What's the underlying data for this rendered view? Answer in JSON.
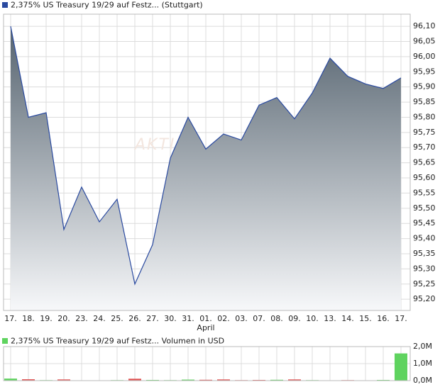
{
  "chart_data": [
    {
      "type": "area",
      "legend": "2,375% US Treasury 19/29 auf Festz... (Stuttgart)",
      "legend_color": "#2a4aa0",
      "watermark": "AKTIE",
      "categories": [
        "17.",
        "18.",
        "19.",
        "20.",
        "23.",
        "24.",
        "25.",
        "26.",
        "27.",
        "30.",
        "31.",
        "01.",
        "02.",
        "03.",
        "07.",
        "08.",
        "09.",
        "10.",
        "13.",
        "14.",
        "15.",
        "16.",
        "17."
      ],
      "category_sublabels": [
        null,
        null,
        null,
        null,
        null,
        null,
        null,
        null,
        null,
        null,
        null,
        "April",
        null,
        null,
        null,
        null,
        null,
        null,
        null,
        null,
        null,
        null,
        null
      ],
      "series": [
        {
          "name": "2,375% US Treasury 19/29 auf Festz... (Stuttgart)",
          "color": "#2a4aa0",
          "values": [
            96.1,
            95.8,
            95.815,
            95.43,
            95.57,
            95.455,
            95.53,
            95.25,
            95.38,
            95.665,
            95.8,
            95.695,
            95.745,
            95.725,
            95.84,
            95.865,
            95.795,
            95.88,
            95.995,
            95.935,
            95.91,
            95.895,
            95.93
          ]
        }
      ],
      "ylim": [
        95.163,
        96.14
      ],
      "yticks": [
        {
          "value": 95.2,
          "label": "95,20"
        },
        {
          "value": 95.25,
          "label": "95,25"
        },
        {
          "value": 95.3,
          "label": "95,30"
        },
        {
          "value": 95.35,
          "label": "95,35"
        },
        {
          "value": 95.4,
          "label": "95,40"
        },
        {
          "value": 95.45,
          "label": "95,45"
        },
        {
          "value": 95.5,
          "label": "95,50"
        },
        {
          "value": 95.55,
          "label": "95,55"
        },
        {
          "value": 95.6,
          "label": "95,60"
        },
        {
          "value": 95.65,
          "label": "95,65"
        },
        {
          "value": 95.7,
          "label": "95,70"
        },
        {
          "value": 95.75,
          "label": "95,75"
        },
        {
          "value": 95.8,
          "label": "95,80"
        },
        {
          "value": 95.85,
          "label": "95,85"
        },
        {
          "value": 95.9,
          "label": "95,90"
        },
        {
          "value": 95.95,
          "label": "95,95"
        },
        {
          "value": 96.0,
          "label": "96,00"
        },
        {
          "value": 96.05,
          "label": "96,05"
        },
        {
          "value": 96.1,
          "label": "96,10"
        }
      ],
      "grid": true
    },
    {
      "type": "bar",
      "legend": "2,375% US Treasury 19/29 auf Festz... Volumen in USD",
      "legend_color": "#5fd35f",
      "values": [
        120000,
        80000,
        30000,
        70000,
        20000,
        20000,
        30000,
        110000,
        40000,
        30000,
        60000,
        50000,
        70000,
        30000,
        40000,
        50000,
        70000,
        30000,
        20000,
        30000,
        20000,
        40000,
        1600000
      ],
      "colors": [
        "#5fd35f",
        "#e05050",
        "#5fd35f",
        "#e05050",
        "#e05050",
        "#5fd35f",
        "#5fd35f",
        "#e05050",
        "#5fd35f",
        "#5fd35f",
        "#5fd35f",
        "#e05050",
        "#e05050",
        "#e05050",
        "#e05050",
        "#5fd35f",
        "#e05050",
        "#5fd35f",
        "#5fd35f",
        "#e05050",
        "#e05050",
        "#5fd35f",
        "#5fd35f"
      ],
      "ylim": [
        0,
        2000000
      ],
      "yticks": [
        {
          "value": 0,
          "label": "0,0M"
        },
        {
          "value": 1000000,
          "label": "1,0M"
        },
        {
          "value": 2000000,
          "label": "2,0M"
        }
      ],
      "grid": true
    }
  ]
}
